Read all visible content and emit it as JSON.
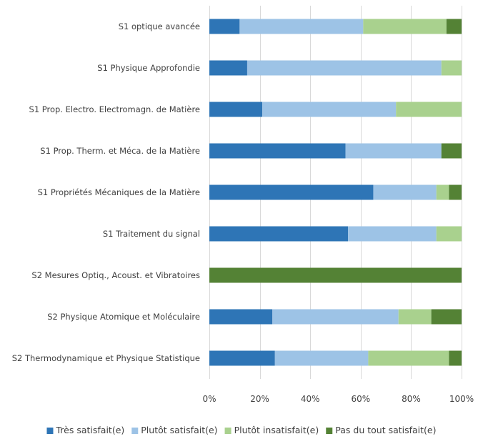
{
  "chart_data": {
    "type": "bar",
    "orientation": "horizontal",
    "stacked": true,
    "percent": true,
    "categories": [
      "S1 optique avancée",
      "S1 Physique Approfondie",
      "S1 Prop. Electro. Electromagn. de Matière",
      "S1 Prop. Therm. et Méca. de la Matière",
      "S1 Propriétés Mécaniques de la Matière",
      "S1 Traitement du signal",
      "S2 Mesures Optiq., Acoust. et Vibratoires",
      "S2 Physique Atomique et Moléculaire",
      "S2 Thermodynamique et Physique Statistique"
    ],
    "series": [
      {
        "name": "Très satisfait(e)",
        "color": "#2e75b6",
        "values": [
          12,
          15,
          21,
          54,
          65,
          55,
          0,
          25,
          26
        ]
      },
      {
        "name": "Plutôt satisfait(e)",
        "color": "#9dc3e6",
        "values": [
          49,
          77,
          53,
          38,
          25,
          35,
          0,
          50,
          37
        ]
      },
      {
        "name": "Plutôt insatisfait(e)",
        "color": "#a9d18e",
        "values": [
          33,
          8,
          26,
          0,
          5,
          10,
          0,
          13,
          32
        ]
      },
      {
        "name": "Pas du tout satisfait(e)",
        "color": "#548235",
        "values": [
          6,
          0,
          0,
          8,
          5,
          0,
          100,
          12,
          5
        ]
      }
    ],
    "xticks": [
      "0%",
      "20%",
      "40%",
      "60%",
      "80%",
      "100%"
    ],
    "xlim": [
      0,
      100
    ],
    "grid": true,
    "legend": "bottom"
  }
}
